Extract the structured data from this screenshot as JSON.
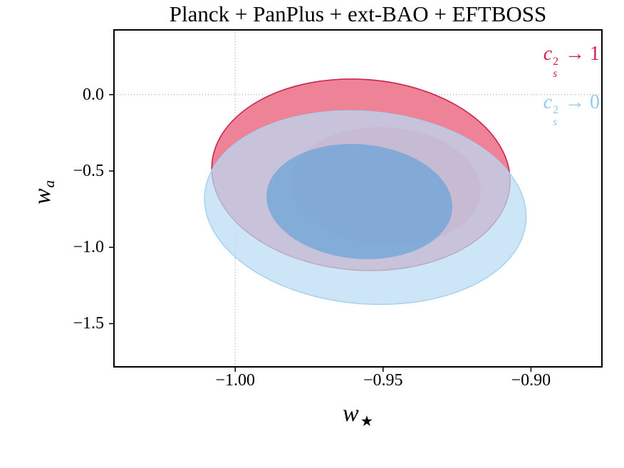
{
  "chart_data": {
    "type": "contour",
    "title": "Planck + PanPlus + ext-BAO + EFTBOSS",
    "xlabel": {
      "base": "w",
      "sub": "★"
    },
    "ylabel": {
      "base": "w",
      "sub": "a"
    },
    "xlim": [
      -1.041,
      -0.876
    ],
    "ylim": [
      -1.783,
      0.424
    ],
    "x_ticks": [
      -1.0,
      -0.95,
      -0.9
    ],
    "x_tick_labels": [
      "−1.00",
      "−0.95",
      "−0.90"
    ],
    "y_ticks": [
      0.0,
      -0.5,
      -1.0,
      -1.5
    ],
    "y_tick_labels": [
      "0.0",
      "−0.5",
      "−1.0",
      "−1.5"
    ],
    "reference_lines": {
      "x": -1.0,
      "y": 0.0
    },
    "grid": "dotted reference lines at x = −1.00 and y = 0.0",
    "legend_position": "top-right inside axes",
    "series": [
      {
        "id": "cs2-to-1",
        "name": "c_s^2 → 1",
        "color": "#d0204a",
        "contours": [
          {
            "level": "95",
            "center": [
              -0.9575,
              -0.525
            ],
            "rx": 0.0505,
            "ry": 0.625,
            "angle": 4,
            "fill": "#ee8397",
            "fill_opacity": 1,
            "stroke": "#cb2b50",
            "stroke_width": 1.7
          },
          {
            "level": "68",
            "center": [
              -0.949,
              -0.6
            ],
            "rx": 0.032,
            "ry": 0.385,
            "angle": 4,
            "fill": "#e4657f",
            "fill_opacity": 1,
            "stroke": "#d5718a",
            "stroke_width": 1
          }
        ]
      },
      {
        "id": "cs2-to-0",
        "name": "c_s^2 → 0",
        "color": "#92c9f0",
        "contours": [
          {
            "level": "95",
            "center": [
              -0.956,
              -0.74
            ],
            "rx": 0.0545,
            "ry": 0.63,
            "angle": 5,
            "fill": "#badcf4",
            "fill_opacity": 0.72,
            "stroke": "#a5d2f1",
            "stroke_width": 1.5
          },
          {
            "level": "68",
            "center": [
              -0.958,
              -0.7
            ],
            "rx": 0.0315,
            "ry": 0.375,
            "angle": 5,
            "fill": "#60a0d7",
            "fill_opacity": 0.65,
            "stroke": "none",
            "stroke_width": 0
          }
        ]
      }
    ],
    "legend": [
      {
        "base": "c",
        "sup": "2",
        "sub": "s",
        "rest": " → 1",
        "color": "#d0204a"
      },
      {
        "base": "c",
        "sup": "2",
        "sub": "s",
        "rest": " → 0",
        "color": "#92c9f0"
      }
    ]
  }
}
